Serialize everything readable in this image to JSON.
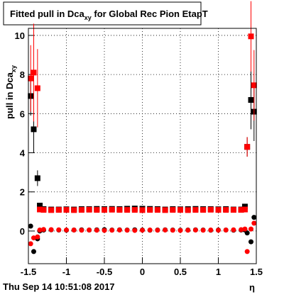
{
  "chart_data": {
    "type": "scatter",
    "title": [
      "Fitted pull in Dca",
      "xy",
      " for Global Rec Pion EtapT"
    ],
    "y_label": [
      "pull in Dca",
      "xy"
    ],
    "x_label": "η",
    "footer": "Thu Sep 14 10:51:08 2017",
    "x": [
      -1.47,
      -1.43,
      -1.38,
      -1.35,
      -1.3,
      -1.2,
      -1.1,
      -1,
      -0.9,
      -0.8,
      -0.7,
      -0.6,
      -0.5,
      -0.4,
      -0.3,
      -0.2,
      -0.1,
      0,
      0.1,
      0.2,
      0.3,
      0.4,
      0.5,
      0.6,
      0.7,
      0.8,
      0.9,
      1,
      1.1,
      1.2,
      1.3,
      1.35,
      1.38,
      1.43,
      1.47
    ],
    "series": [
      {
        "marker": "square",
        "color": "#000000",
        "values": [
          6.9,
          5.2,
          2.7,
          1.3,
          1.12,
          1.1,
          1.1,
          1.11,
          1.1,
          1.12,
          1.12,
          1.13,
          1.12,
          1.13,
          1.12,
          1.14,
          1.15,
          1.14,
          1.13,
          1.12,
          1.1,
          1.12,
          1.11,
          1.12,
          1.13,
          1.12,
          1.12,
          1.11,
          1.12,
          1.1,
          1.1,
          1.25,
          4.3,
          6.7,
          6.1
        ],
        "errors": [
          1.0,
          1.2,
          0.4,
          0.1,
          0.03,
          0.03,
          0.03,
          0.03,
          0.03,
          0.03,
          0.03,
          0.03,
          0.03,
          0.03,
          0.03,
          0.03,
          0.03,
          0.03,
          0.03,
          0.03,
          0.03,
          0.03,
          0.03,
          0.03,
          0.03,
          0.03,
          0.03,
          0.03,
          0.03,
          0.03,
          0.03,
          0.1,
          0.5,
          1.5,
          1.5
        ]
      },
      {
        "marker": "square",
        "color": "#ff0000",
        "values": [
          7.8,
          8.1,
          7.3,
          1.1,
          1.08,
          1.07,
          1.08,
          1.08,
          1.07,
          1.08,
          1.09,
          1.08,
          1.08,
          1.09,
          1.08,
          1.08,
          1.08,
          1.07,
          1.08,
          1.08,
          1.07,
          1.08,
          1.08,
          1.07,
          1.08,
          1.08,
          1.09,
          1.08,
          1.08,
          1.08,
          1.08,
          1.1,
          4.3,
          9.95,
          7.45
        ],
        "errors": [
          1.7,
          2.5,
          2.0,
          0.1,
          0.03,
          0.03,
          0.03,
          0.03,
          0.03,
          0.03,
          0.03,
          0.03,
          0.03,
          0.03,
          0.03,
          0.03,
          0.03,
          0.03,
          0.03,
          0.03,
          0.03,
          0.03,
          0.03,
          0.03,
          0.03,
          0.03,
          0.03,
          0.03,
          0.03,
          0.03,
          0.03,
          0.1,
          0.5,
          1.8,
          1.8
        ]
      },
      {
        "marker": "circle",
        "color": "#000000",
        "values": [
          0.25,
          -1.05,
          -0.4,
          0.0,
          0.05,
          0.06,
          0.05,
          0.04,
          0.05,
          0.06,
          0.05,
          0.06,
          0.07,
          0.05,
          0.06,
          0.05,
          0.06,
          0.05,
          0.04,
          0.05,
          0.06,
          0.05,
          0.04,
          0.05,
          0.06,
          0.05,
          0.04,
          0.05,
          0.05,
          0.04,
          0.05,
          0.05,
          -0.1,
          -0.55,
          0.7
        ]
      },
      {
        "marker": "circle",
        "color": "#ff0000",
        "values": [
          -0.65,
          -0.35,
          -0.3,
          0.05,
          0.08,
          0.07,
          0.06,
          0.05,
          0.05,
          0.04,
          0.05,
          0.04,
          0.03,
          0.04,
          0.05,
          0.04,
          0.03,
          0.04,
          0.05,
          0.04,
          0.05,
          0.04,
          0.03,
          0.04,
          0.05,
          0.04,
          0.05,
          0.04,
          0.05,
          0.06,
          0.07,
          0.1,
          -1.05,
          0.1,
          0.4
        ]
      }
    ],
    "xlim": [
      -1.5,
      1.5
    ],
    "ylim": [
      -1.67,
      10.36
    ],
    "xticks": [
      -1.5,
      -1,
      -0.5,
      0,
      0.5,
      1,
      1.5
    ],
    "yticks": [
      0,
      2,
      4,
      6,
      8,
      10
    ],
    "grid": true
  }
}
